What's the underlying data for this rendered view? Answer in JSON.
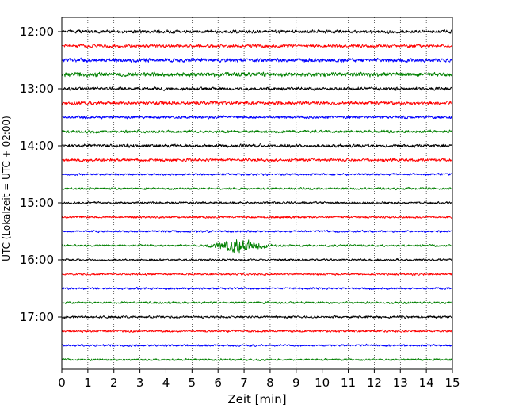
{
  "chart_data": {
    "type": "line",
    "subtype": "helicorder",
    "title": "",
    "xlabel": "Zeit  [min]",
    "ylabel": "UTC (Lokalzeit = UTC + 02:00)",
    "xlim": [
      0,
      15
    ],
    "x_ticks": [
      0,
      1,
      2,
      3,
      4,
      5,
      6,
      7,
      8,
      9,
      10,
      11,
      12,
      13,
      14,
      15
    ],
    "x_tick_labels": [
      "0",
      "1",
      "2",
      "3",
      "4",
      "5",
      "6",
      "7",
      "8",
      "9",
      "10",
      "11",
      "12",
      "13",
      "14",
      "15"
    ],
    "grid": "vertical dotted at each minute",
    "trace_interval_min": 15,
    "y_tick_labels": [
      "12:00",
      "13:00",
      "14:00",
      "15:00",
      "16:00",
      "17:00"
    ],
    "trace_color_cycle": [
      "#000000",
      "#ff0000",
      "#0000ff",
      "#008000"
    ],
    "traces": [
      {
        "start": "12:00",
        "color": "#000000",
        "amplitude": 3.2
      },
      {
        "start": "12:15",
        "color": "#ff0000",
        "amplitude": 3.0
      },
      {
        "start": "12:30",
        "color": "#0000ff",
        "amplitude": 3.6
      },
      {
        "start": "12:45",
        "color": "#008000",
        "amplitude": 4.0
      },
      {
        "start": "13:00",
        "color": "#000000",
        "amplitude": 3.0
      },
      {
        "start": "13:15",
        "color": "#ff0000",
        "amplitude": 3.2
      },
      {
        "start": "13:30",
        "color": "#0000ff",
        "amplitude": 2.6
      },
      {
        "start": "13:45",
        "color": "#008000",
        "amplitude": 2.6
      },
      {
        "start": "14:00",
        "color": "#000000",
        "amplitude": 3.0
      },
      {
        "start": "14:15",
        "color": "#ff0000",
        "amplitude": 2.8
      },
      {
        "start": "14:30",
        "color": "#0000ff",
        "amplitude": 2.0
      },
      {
        "start": "14:45",
        "color": "#008000",
        "amplitude": 2.0
      },
      {
        "start": "15:00",
        "color": "#000000",
        "amplitude": 2.2
      },
      {
        "start": "15:15",
        "color": "#ff0000",
        "amplitude": 2.0
      },
      {
        "start": "15:30",
        "color": "#0000ff",
        "amplitude": 2.0
      },
      {
        "start": "15:45",
        "color": "#008000",
        "amplitude": 2.0,
        "event": {
          "start_min": 5.3,
          "peak_min": 6.8,
          "end_min": 8.3,
          "peak_amplitude": 11
        }
      },
      {
        "start": "16:00",
        "color": "#000000",
        "amplitude": 2.0
      },
      {
        "start": "16:15",
        "color": "#ff0000",
        "amplitude": 2.0
      },
      {
        "start": "16:30",
        "color": "#0000ff",
        "amplitude": 2.0
      },
      {
        "start": "16:45",
        "color": "#008000",
        "amplitude": 2.0
      },
      {
        "start": "17:00",
        "color": "#000000",
        "amplitude": 2.2
      },
      {
        "start": "17:15",
        "color": "#ff0000",
        "amplitude": 2.0
      },
      {
        "start": "17:30",
        "color": "#0000ff",
        "amplitude": 2.0
      },
      {
        "start": "17:45",
        "color": "#008000",
        "amplitude": 2.0
      }
    ]
  }
}
